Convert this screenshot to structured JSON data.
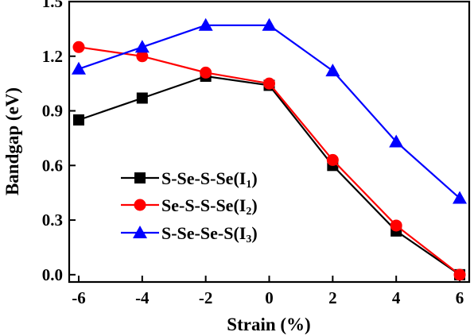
{
  "chart_data": {
    "type": "line",
    "xlabel": "Strain (%)",
    "ylabel": "Bandgap (eV)",
    "x": [
      -6,
      -4,
      -2,
      0,
      2,
      4,
      6
    ],
    "xlim": [
      -6.3,
      6.3
    ],
    "ylim": [
      -0.04,
      1.5
    ],
    "x_ticks": [
      "-6",
      "-4",
      "-2",
      "0",
      "2",
      "4",
      "6"
    ],
    "y_ticks": [
      "0.0",
      "0.3",
      "0.6",
      "0.9",
      "1.2",
      "1.5"
    ],
    "grid": false,
    "legend_position": "center-left",
    "series": [
      {
        "name": "S-Se-S-Se",
        "name_suffix_main": "I",
        "name_suffix_sub": "1",
        "marker": "square",
        "color": "#000000",
        "values": [
          0.85,
          0.97,
          1.09,
          1.04,
          0.6,
          0.24,
          0.0
        ]
      },
      {
        "name": "Se-S-S-Se",
        "name_suffix_main": "I",
        "name_suffix_sub": "2",
        "marker": "circle",
        "color": "#ff0000",
        "values": [
          1.25,
          1.2,
          1.11,
          1.05,
          0.63,
          0.27,
          0.0
        ]
      },
      {
        "name": "S-Se-Se-S",
        "name_suffix_main": "I",
        "name_suffix_sub": "3",
        "marker": "triangle",
        "color": "#0000ff",
        "values": [
          1.13,
          1.25,
          1.37,
          1.37,
          1.12,
          0.73,
          0.42
        ]
      }
    ]
  }
}
